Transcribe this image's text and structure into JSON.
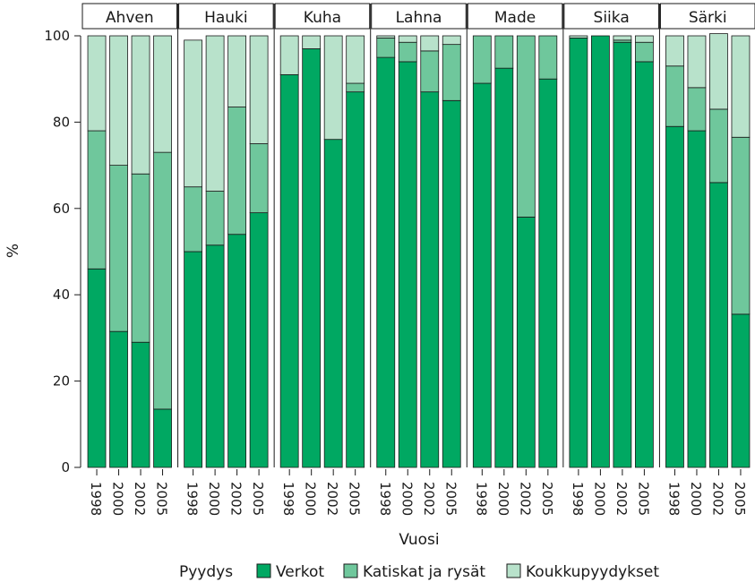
{
  "chart_data": {
    "type": "bar",
    "stacked": true,
    "facet_by": "species",
    "panels": [
      "Ahven",
      "Hauki",
      "Kuha",
      "Lahna",
      "Made",
      "Siika",
      "Särki"
    ],
    "categories": [
      "1998",
      "2000",
      "2002",
      "2005"
    ],
    "xlabel": "Vuosi",
    "ylabel": "%",
    "ylim": [
      0,
      100
    ],
    "yticks": [
      "0",
      "20",
      "40",
      "60",
      "80",
      "100"
    ],
    "legend": {
      "title": "Pyydys",
      "placement": "bottom"
    },
    "series": [
      {
        "name": "Verkot",
        "color": "#00a862",
        "values": [
          [
            46,
            31.5,
            29,
            13.5
          ],
          [
            50,
            51.5,
            54,
            59
          ],
          [
            91,
            97,
            76,
            87
          ],
          [
            95,
            94,
            87,
            85
          ],
          [
            89,
            92.5,
            58,
            90
          ],
          [
            99.5,
            100,
            98.5,
            94
          ],
          [
            79,
            78,
            66,
            35.5
          ]
        ]
      },
      {
        "name": "Katiskat ja rysät",
        "color": "#6fc79c",
        "values": [
          [
            32,
            38.5,
            39,
            59.5
          ],
          [
            15,
            12.5,
            29.5,
            16
          ],
          [
            0,
            0,
            0,
            2
          ],
          [
            4.5,
            4.5,
            9.5,
            13
          ],
          [
            11,
            7.5,
            42,
            10
          ],
          [
            0,
            0,
            0.5,
            4.5
          ],
          [
            14,
            10,
            17,
            41
          ]
        ]
      },
      {
        "name": "Koukkupyydykset",
        "color": "#b8e2cb",
        "values": [
          [
            22,
            30,
            32,
            27
          ],
          [
            34,
            36,
            16.5,
            25
          ],
          [
            9,
            3,
            24,
            11
          ],
          [
            0.5,
            1.5,
            3.5,
            2
          ],
          [
            0,
            0,
            0,
            0
          ],
          [
            0.5,
            0,
            1,
            1.5
          ],
          [
            7,
            12,
            17.5,
            23.5
          ]
        ]
      }
    ]
  }
}
